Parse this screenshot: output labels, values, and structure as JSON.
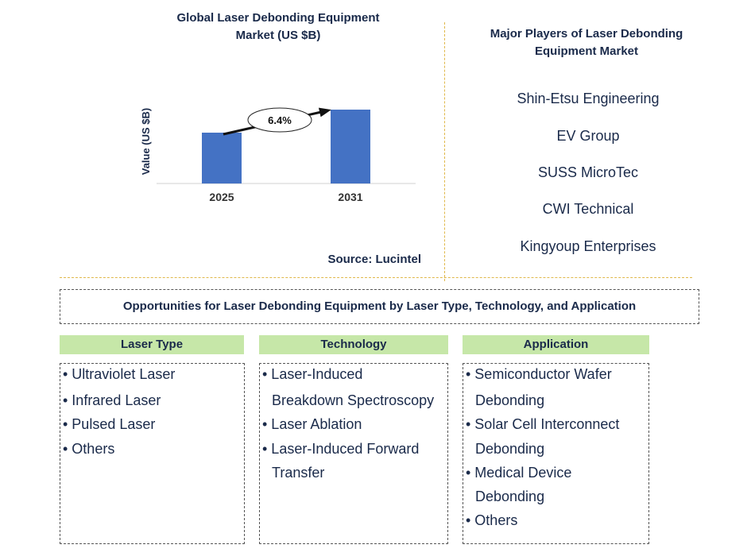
{
  "chart_data": {
    "type": "bar",
    "title": "Global Laser Debonding Equipment Market (US $B)",
    "title_lines": [
      "Global Laser Debonding Equipment",
      "Market (US $B)"
    ],
    "categories": [
      "2025",
      "2031"
    ],
    "values": [
      0.64,
      0.93
    ],
    "ylabel": "Value (US $B)",
    "xlabel": "",
    "ylim": [
      0,
      1.0
    ],
    "annotation": "6.4%",
    "bar_color": "#4472c4"
  },
  "source": "Source: Lucintel",
  "players": {
    "title_lines": [
      "Major Players of Laser Debonding",
      "Equipment Market"
    ],
    "items": [
      "Shin-Etsu Engineering",
      "EV Group",
      "SUSS MicroTec",
      "CWI Technical",
      "Kingyoup Enterprises"
    ]
  },
  "opportunities": {
    "title": "Opportunities for Laser Debonding Equipment by Laser Type, Technology, and Application",
    "columns": [
      {
        "header": "Laser Type",
        "lines": [
          "• Ultraviolet Laser",
          "• Infrared Laser",
          "• Pulsed Laser",
          "• Others"
        ]
      },
      {
        "header": "Technology",
        "lines": [
          "• Laser-Induced",
          "Breakdown Spectroscopy",
          "• Laser Ablation",
          "• Laser-Induced Forward",
          "Transfer"
        ]
      },
      {
        "header": "Application",
        "lines": [
          "• Semiconductor Wafer",
          "Debonding",
          "• Solar Cell Interconnect",
          "Debonding",
          "• Medical Device",
          "Debonding",
          "• Others"
        ]
      }
    ]
  },
  "colors": {
    "header_green": "#c6e7a8",
    "divider": "#e0b84a",
    "text": "#1a2a4a"
  }
}
